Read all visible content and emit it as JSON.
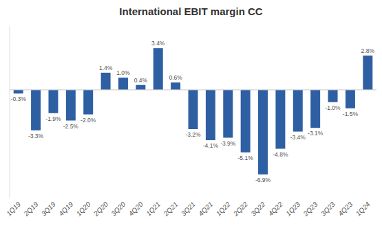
{
  "chart_data": {
    "type": "bar",
    "title": "International EBIT margin CC",
    "categories": [
      "1Q19",
      "2Q19",
      "3Q19",
      "4Q19",
      "1Q20",
      "2Q20",
      "3Q20",
      "4Q20",
      "1Q21",
      "2Q21",
      "3Q21",
      "4Q21",
      "1Q22",
      "2Q22",
      "3Q22",
      "4Q22",
      "1Q23",
      "2Q23",
      "3Q23",
      "4Q23",
      "1Q24"
    ],
    "values": [
      -0.3,
      -3.3,
      -1.9,
      -2.5,
      -2.0,
      1.4,
      1.0,
      0.4,
      3.4,
      0.6,
      -3.2,
      -4.1,
      -3.9,
      -5.1,
      -6.9,
      -4.8,
      -3.4,
      -3.1,
      -1.0,
      -1.5,
      2.8
    ],
    "value_labels": [
      "-0.3%",
      "-3.3%",
      "-1.9%",
      "-2.5%",
      "-2.0%",
      "1.4%",
      "1.0%",
      "0.4%",
      "3.4%",
      "0.6%",
      "-3.2%",
      "-4.1%",
      "-3.9%",
      "-5.1%",
      "-6.9%",
      "-4.8%",
      "-3.4%",
      "-3.1%",
      "-1.0%",
      "-1.5%",
      "2.8%"
    ],
    "color": "#2E5FA3",
    "ylim": [
      -8.8,
      5.2
    ],
    "grid": false,
    "data_labels": true,
    "tick_labels": "x"
  }
}
